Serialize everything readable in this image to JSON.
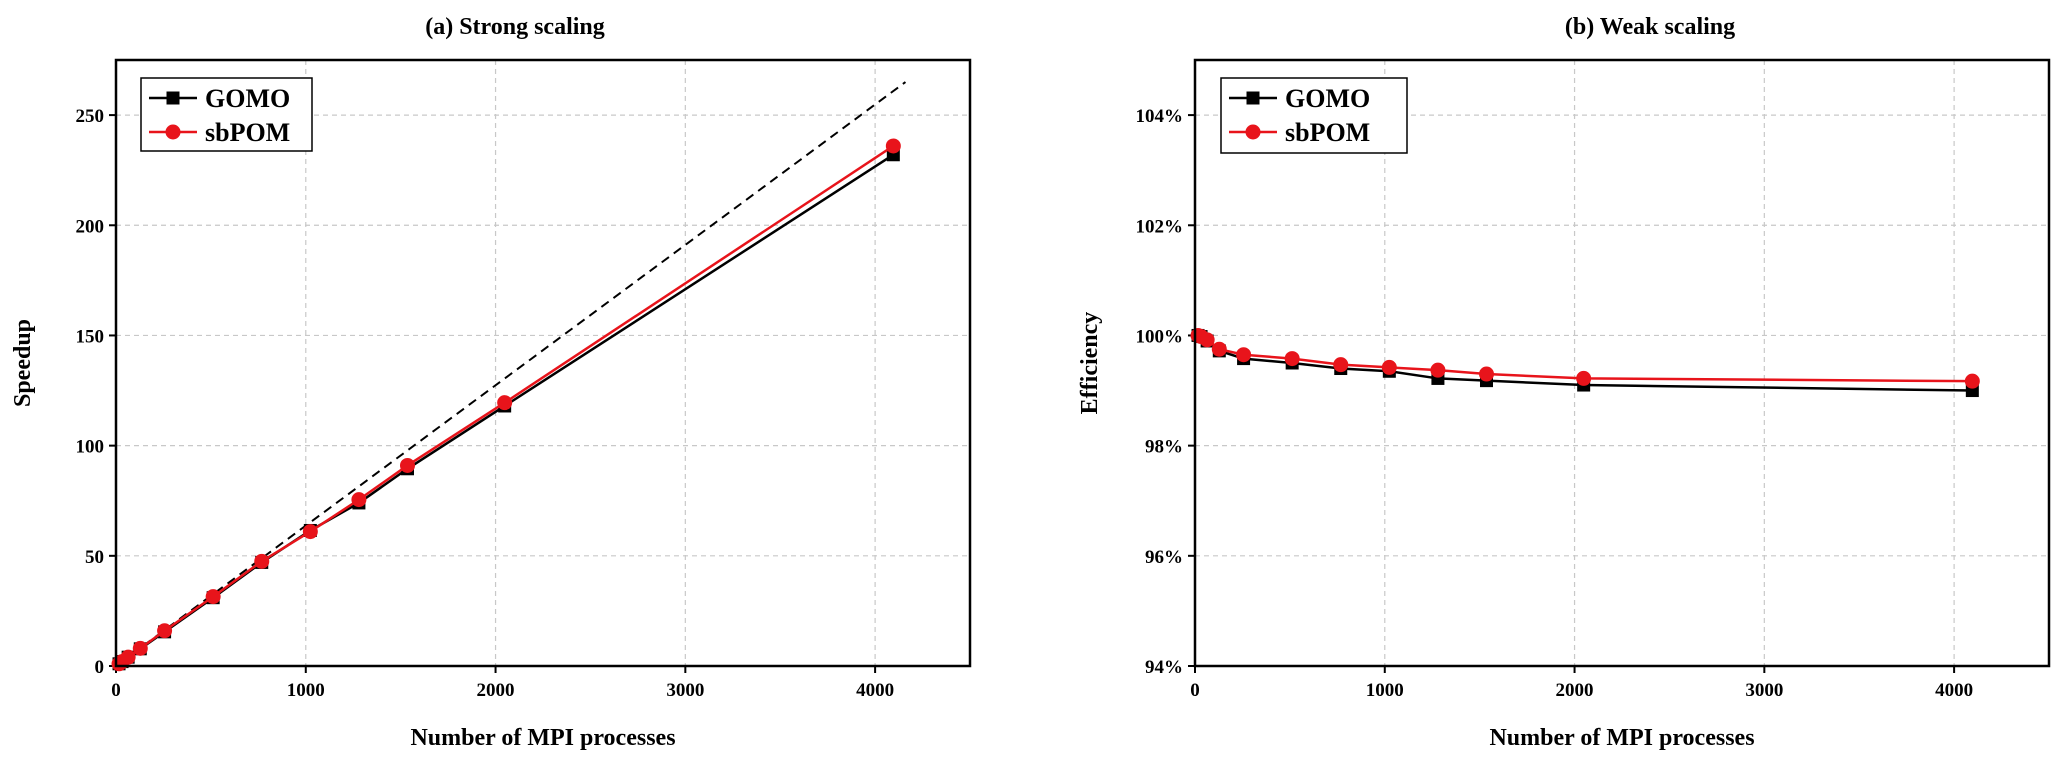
{
  "chart_data": [
    {
      "type": "line",
      "title": "(a) Strong scaling",
      "xlabel": "Number of MPI processes",
      "ylabel": "Speedup",
      "xlim": [
        0,
        4500
      ],
      "ylim": [
        0,
        275
      ],
      "xticks": [
        0,
        1000,
        2000,
        3000,
        4000
      ],
      "yticks": [
        0,
        50,
        100,
        150,
        200,
        250
      ],
      "ytick_labels": [
        "0",
        "50",
        "100",
        "150",
        "200",
        "250"
      ],
      "grid": true,
      "legend": "top-left",
      "ideal_line": {
        "x": [
          16,
          4160
        ],
        "y": [
          1,
          265
        ],
        "style": "dashed",
        "color": "#000000"
      },
      "series": [
        {
          "name": "GOMO",
          "color": "#000000",
          "marker": "square",
          "x": [
            16,
            32,
            64,
            128,
            256,
            512,
            768,
            1024,
            1280,
            1536,
            2048,
            4096
          ],
          "y": [
            1,
            2,
            4,
            7.8,
            15.5,
            31,
            47,
            61.5,
            74,
            89.5,
            118,
            232
          ]
        },
        {
          "name": "sbPOM",
          "color": "#e8141b",
          "marker": "circle",
          "x": [
            16,
            32,
            64,
            128,
            256,
            512,
            768,
            1024,
            1280,
            1536,
            2048,
            4096
          ],
          "y": [
            1,
            2,
            4,
            8,
            16,
            31.5,
            47.5,
            61,
            75.5,
            91,
            119.5,
            236
          ]
        }
      ]
    },
    {
      "type": "line",
      "title": "(b) Weak scaling",
      "xlabel": "Number of MPI processes",
      "ylabel": "Efficiency",
      "xlim": [
        0,
        4500
      ],
      "ylim": [
        94,
        105
      ],
      "xticks": [
        0,
        1000,
        2000,
        3000,
        4000
      ],
      "yticks": [
        94,
        96,
        98,
        100,
        102,
        104
      ],
      "ytick_labels": [
        "94%",
        "96%",
        "98%",
        "100%",
        "102%",
        "104%"
      ],
      "grid": true,
      "legend": "top-left",
      "series": [
        {
          "name": "GOMO",
          "color": "#000000",
          "marker": "square",
          "x": [
            16,
            32,
            64,
            128,
            256,
            512,
            768,
            1024,
            1280,
            1536,
            2048,
            4096
          ],
          "y": [
            100,
            99.98,
            99.9,
            99.72,
            99.58,
            99.5,
            99.4,
            99.35,
            99.22,
            99.18,
            99.1,
            99.0
          ]
        },
        {
          "name": "sbPOM",
          "color": "#e8141b",
          "marker": "circle",
          "x": [
            16,
            32,
            64,
            128,
            256,
            512,
            768,
            1024,
            1280,
            1536,
            2048,
            4096
          ],
          "y": [
            100,
            99.98,
            99.92,
            99.75,
            99.65,
            99.58,
            99.47,
            99.42,
            99.37,
            99.3,
            99.22,
            99.17
          ]
        }
      ]
    }
  ]
}
